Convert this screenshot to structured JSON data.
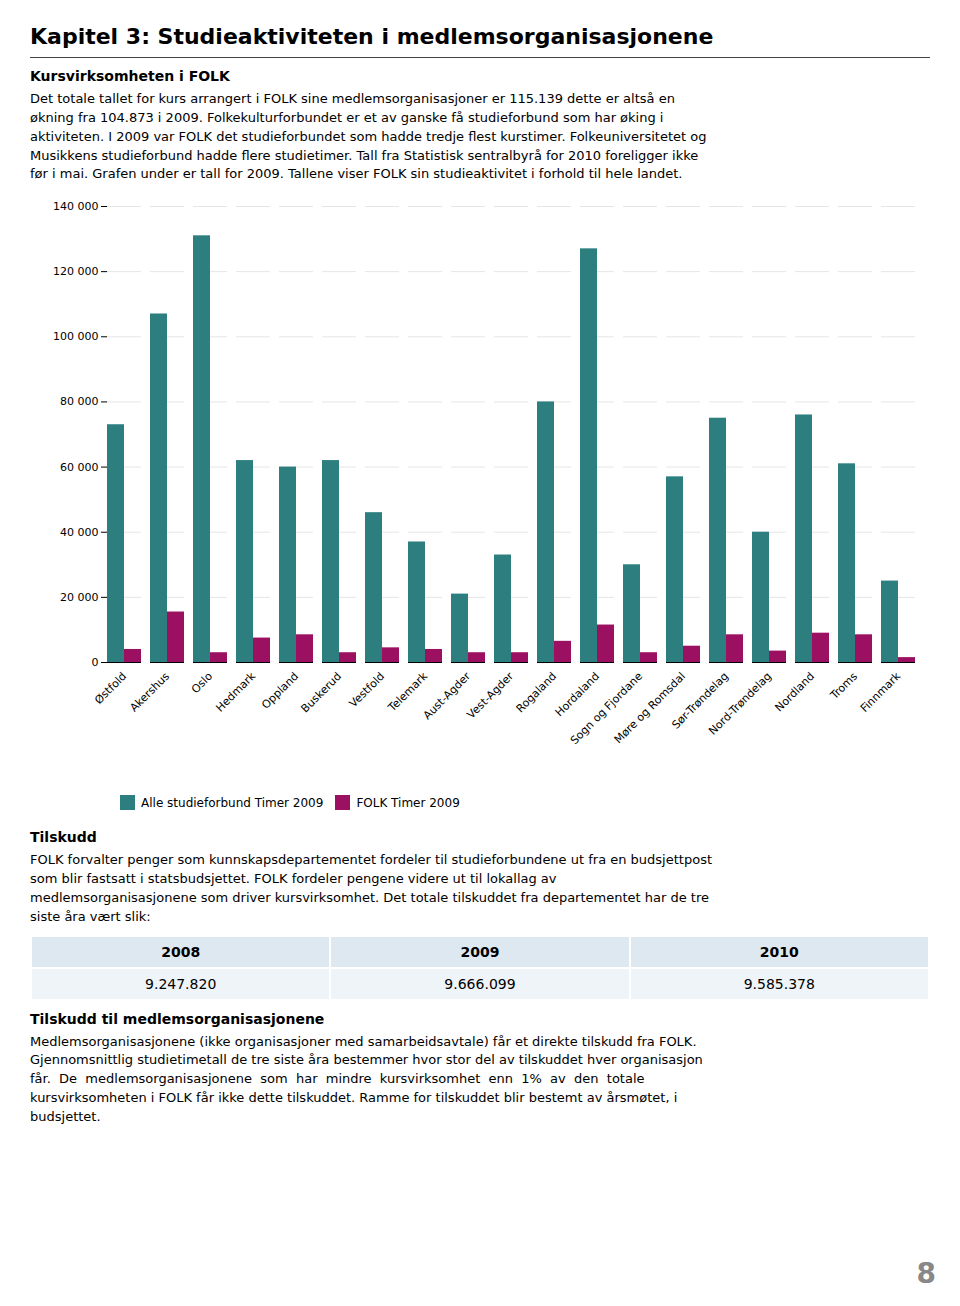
{
  "chart_data": {
    "type": "bar",
    "title": "Kapitel 3: Studieaktiviteten i medlemsorganisasjonene",
    "subtitle": "Kursvirksomheten i FOLK",
    "categories": [
      "Østfold",
      "Akershus",
      "Oslo",
      "Hedmark",
      "Oppland",
      "Buskerud",
      "Vestfold",
      "Telemark",
      "Aust-Agder",
      "Vest-Agder",
      "Rogaland",
      "Hordaland",
      "Sogn og Fjordane",
      "Møre og Romsdal",
      "Sør-Trøndelag",
      "Nord-Trøndelag",
      "Nordland",
      "Troms",
      "Finnmark"
    ],
    "series": [
      {
        "name": "Alle studieforbund Timer 2009",
        "color": "#2D7F7F",
        "values": [
          73000,
          107000,
          131000,
          62000,
          60000,
          62000,
          46000,
          37000,
          21000,
          33000,
          80000,
          127000,
          30000,
          57000,
          75000,
          40000,
          76000,
          61000,
          25000
        ]
      },
      {
        "name": "FOLK Timer 2009",
        "color": "#9B1060",
        "values": [
          4000,
          15500,
          3000,
          7500,
          8500,
          3000,
          4500,
          4000,
          3000,
          3000,
          6500,
          11500,
          3000,
          5000,
          8500,
          3500,
          9000,
          8500,
          1500
        ]
      }
    ],
    "ylim": [
      0,
      140000
    ],
    "yticks": [
      0,
      {
        "value": 20000,
        "label": "20 000"
      },
      {
        "value": 40000,
        "label": "40 000"
      },
      {
        "value": 60000,
        "label": "60 000"
      },
      {
        "value": 80000,
        "label": "80 000"
      },
      {
        "value": 100000,
        "label": "100 000"
      },
      {
        "value": 120000,
        "label": "120 000"
      },
      {
        "value": 140000,
        "label": "140 000"
      }
    ],
    "grid": true,
    "legend": "bottom",
    "annotations": [
      "Det totale tallet for kurs arrangert i FOLK sine medlemsorganisasjoner er 115.139 dette er altså en\nøkning fra 104.873 i 2009. Folkekulturforbundet er et av ganske få studieforbund som har øking i\naktiviteten. I 2009 var FOLK det studieforbundet som hadde tredje flest kurstimer. Folkeuniversitetet og\nMusikkens studieforbund hadde flere studietimer. Tall fra Statistisk sentralbyrå for 2010 foreligger ikke\nfør i mai. Grafen under er tall for 2009. Tallene viser FOLK sin studieaktivitet i forhold til hele landet.",
      "Tilskudd",
      "FOLK forvalter penger som kunnskapsdepartementet fordeler til studieforbundene ut fra en budsjettpost\nsom blir fastsatt i statsbudsjettet. FOLK fordeler pengene videre ut til lokallag av\nmedlemsorganisasjonene som driver kursvirksomhet. Det totale tilskuddet fra departementet har de tre\nsiste åra vært slik:",
      "Tilskudd til medlemsorganisasjonene",
      "Medlemsorganisasjonene (ikke organisasjoner med samarbeidsavtale) får et direkte tilskudd fra FOLK.\nGjennomsnittlig studietimetall de tre siste åra bestemmer hvor stor del av tilskuddet hver organisasjon\nfår.  De  medlemsorganisasjonene  som  har  mindre  kursvirksomhet  enn  1%  av  den  totale\nkursvirksomheten i FOLK får ikke dette tilskuddet. Ramme for tilskuddet blir bestemt av årsmøtet, i\nbudsjettet.",
      "8"
    ],
    "table": {
      "header": [
        "2008",
        "2009",
        "2010"
      ],
      "row": [
        "9.247.820",
        "9.666.099",
        "9.585.378"
      ]
    }
  }
}
